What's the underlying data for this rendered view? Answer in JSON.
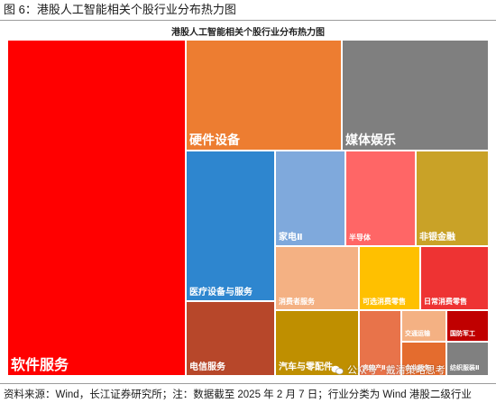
{
  "figure_title": "图 6：港股人工智能相关个股行业分布热力图",
  "source_note": "资料来源：Wind，长江证券研究所；注：数据截至 2025 年 2 月 7 日；行业分类为 Wind 港股二级行业",
  "watermark": "公众号 · 戴清策略思考",
  "watermark_icon": "wechat-icon",
  "chart_data": {
    "type": "treemap",
    "title": "港股人工智能相关个股行业分布热力图",
    "x_unit": "",
    "cells": [
      {
        "label": "软件服务",
        "value": 27.0,
        "color": "#ff0000"
      },
      {
        "label": "硬件设备",
        "value": 11.8,
        "color": "#ed7d31"
      },
      {
        "label": "媒体娱乐",
        "value": 8.2,
        "color": "#7f7f7f"
      },
      {
        "label": "医疗设备与服务",
        "value": 5.0,
        "color": "#2e86cf"
      },
      {
        "label": "电信服务",
        "value": 3.6,
        "color": "#b7472a"
      },
      {
        "label": "家电Ⅱ",
        "value": 3.2,
        "color": "#7fa9dc"
      },
      {
        "label": "半导体",
        "value": 3.2,
        "color": "#ff6666"
      },
      {
        "label": "非银金融",
        "value": 3.2,
        "color": "#c9a227"
      },
      {
        "label": "消费者服务",
        "value": 2.5,
        "color": "#f4b183"
      },
      {
        "label": "可选消费零售",
        "value": 1.7,
        "color": "#ffc000"
      },
      {
        "label": "日常消费零售",
        "value": 1.7,
        "color": "#ee3333"
      },
      {
        "label": "汽车与零配件",
        "value": 2.5,
        "color": "#bf8f00"
      },
      {
        "label": "房地产Ⅱ",
        "value": 1.1,
        "color": "#e8734a"
      },
      {
        "label": "交通运输",
        "value": 0.6,
        "color": "#f4b183"
      },
      {
        "label": "企业服务",
        "value": 0.6,
        "color": "#e46c2e"
      },
      {
        "label": "国防军工",
        "value": 0.6,
        "color": "#c00000"
      },
      {
        "label": "纺织服装Ⅱ",
        "value": 0.6,
        "color": "#808080"
      }
    ]
  }
}
